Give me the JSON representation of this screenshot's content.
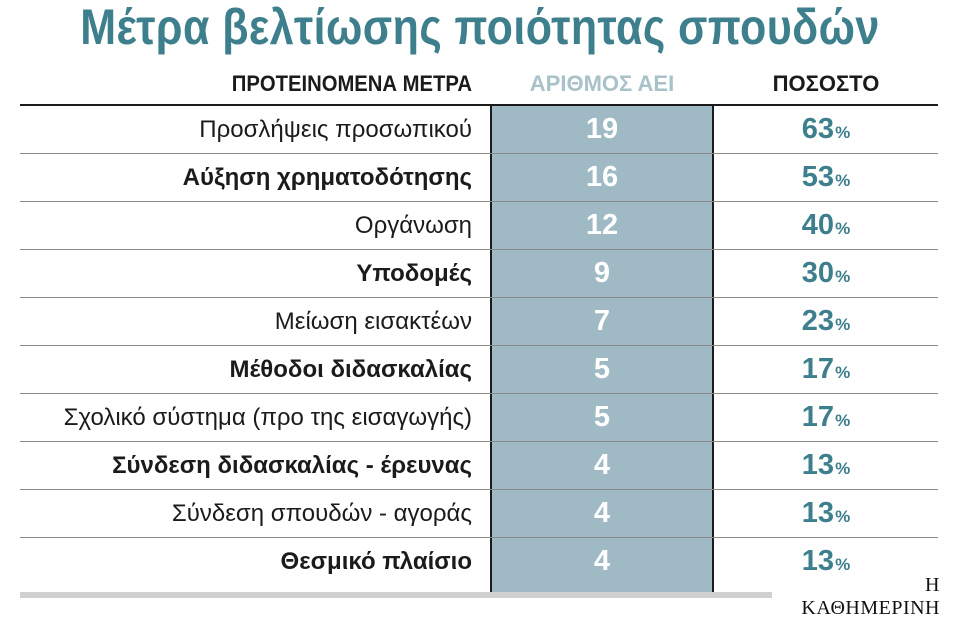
{
  "chart_data": {
    "type": "table",
    "title": "Μέτρα βελτίωσης ποιότητας σπουδών",
    "columns": [
      "ΠΡΟΤΕΙΝΟΜΕΝΑ ΜΕΤΡΑ",
      "ΑΡΙΘΜΟΣ ΑΕΙ",
      "ΠΟΣΟΣΤΟ"
    ],
    "rows": [
      {
        "measure": "Προσλήψεις προσωπικού",
        "count": 19,
        "percent": 63,
        "bold": false
      },
      {
        "measure": "Αύξηση χρηματοδότησης",
        "count": 16,
        "percent": 53,
        "bold": true
      },
      {
        "measure": "Οργάνωση",
        "count": 12,
        "percent": 40,
        "bold": false
      },
      {
        "measure": "Υποδομές",
        "count": 9,
        "percent": 30,
        "bold": true
      },
      {
        "measure": "Μείωση εισακτέων",
        "count": 7,
        "percent": 23,
        "bold": false
      },
      {
        "measure": "Μέθοδοι διδασκαλίας",
        "count": 5,
        "percent": 17,
        "bold": true
      },
      {
        "measure": "Σχολικό σύστημα (προ της εισαγωγής)",
        "count": 5,
        "percent": 17,
        "bold": false
      },
      {
        "measure": "Σύνδεση διδασκαλίας - έρευνας",
        "count": 4,
        "percent": 13,
        "bold": true
      },
      {
        "measure": "Σύνδεση σπουδών - αγοράς",
        "count": 4,
        "percent": 13,
        "bold": false
      },
      {
        "measure": "Θεσμικό πλαίσιο",
        "count": 4,
        "percent": 13,
        "bold": true
      }
    ],
    "percent_sign": "%"
  },
  "source": "Η ΚΑΘΗΜΕΡΙΝΗ",
  "colors": {
    "title": "#3d7f8c",
    "count_band": "#9fbac4",
    "count_header": "#a9c1c9",
    "percent": "#3d7f8c"
  }
}
